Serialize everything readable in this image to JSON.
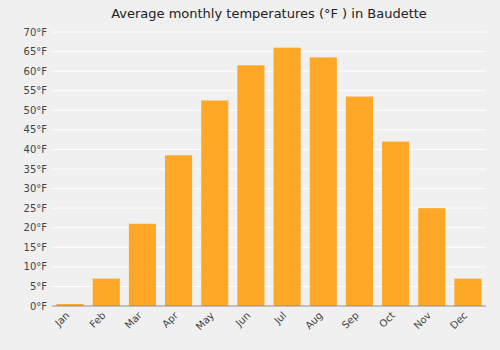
{
  "chart_data": {
    "type": "bar",
    "title": "Average monthly temperatures (°F ) in Baudette",
    "categories": [
      "Jan",
      "Feb",
      "Mar",
      "Apr",
      "May",
      "Jun",
      "Jul",
      "Aug",
      "Sep",
      "Oct",
      "Nov",
      "Dec"
    ],
    "values": [
      0.5,
      7,
      21,
      38.5,
      52.5,
      61.5,
      66,
      63.5,
      53.5,
      42,
      25,
      7
    ],
    "color": "#FFA726",
    "ylim": [
      0,
      70
    ],
    "yticks": [
      {
        "value": 0,
        "label": "0°F"
      },
      {
        "value": 5,
        "label": "5°F"
      },
      {
        "value": 10,
        "label": "10°F"
      },
      {
        "value": 15,
        "label": "15°F"
      },
      {
        "value": 20,
        "label": "20°F"
      },
      {
        "value": 25,
        "label": "25°F"
      },
      {
        "value": 30,
        "label": "30°F"
      },
      {
        "value": 35,
        "label": "35°F"
      },
      {
        "value": 40,
        "label": "40°F"
      },
      {
        "value": 45,
        "label": "45°F"
      },
      {
        "value": 50,
        "label": "50°F"
      },
      {
        "value": 55,
        "label": "55°F"
      },
      {
        "value": 60,
        "label": "60°F"
      },
      {
        "value": 65,
        "label": "65°F"
      },
      {
        "value": 70,
        "label": "70°F"
      }
    ],
    "grid": true
  }
}
